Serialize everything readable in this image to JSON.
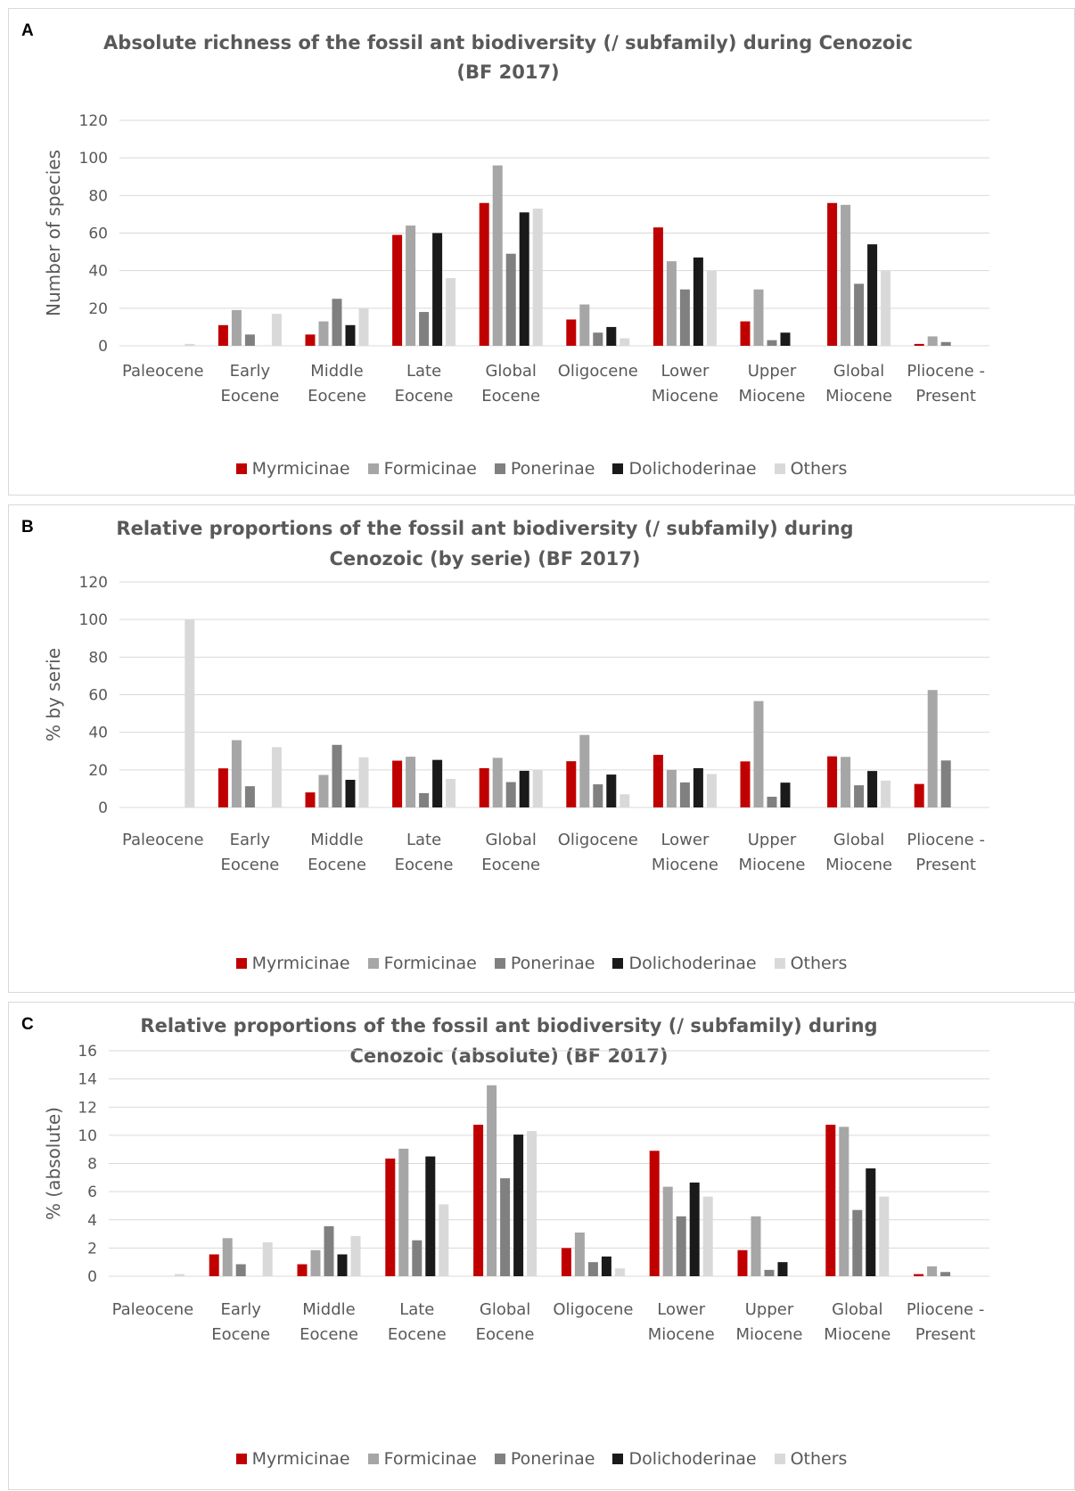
{
  "panels": [
    {
      "letter": "A",
      "chart_data": {
        "type": "bar",
        "title": "Absolute richness of the fossil ant biodiversity (/ subfamily) during Cenozoic (BF 2017)",
        "title_lines": [
          "Absolute richness of the fossil ant biodiversity (/ subfamily) during Cenozoic",
          "(BF 2017)"
        ],
        "ylabel": "Number of species",
        "ylim": [
          0,
          120
        ],
        "yticks": [
          0,
          20,
          40,
          60,
          80,
          100,
          120
        ],
        "grid": true,
        "legend_position": "bottom",
        "categories": [
          [
            "Paleocene"
          ],
          [
            "Early",
            "Eocene"
          ],
          [
            "Middle",
            "Eocene"
          ],
          [
            "Late",
            "Eocene"
          ],
          [
            "Global",
            "Eocene"
          ],
          [
            "Oligocene"
          ],
          [
            "Lower",
            "Miocene"
          ],
          [
            "Upper",
            "Miocene"
          ],
          [
            "Global",
            "Miocene"
          ],
          [
            "Pliocene -",
            "Present"
          ]
        ],
        "series": [
          {
            "name": "Myrmicinae",
            "color": "#c00000",
            "values": [
              0,
              11,
              6,
              59,
              76,
              14,
              63,
              13,
              76,
              1
            ]
          },
          {
            "name": "Formicinae",
            "color": "#a6a6a6",
            "values": [
              0,
              19,
              13,
              64,
              96,
              22,
              45,
              30,
              75,
              5
            ]
          },
          {
            "name": "Ponerinae",
            "color": "#808080",
            "values": [
              0,
              6,
              25,
              18,
              49,
              7,
              30,
              3,
              33,
              2
            ]
          },
          {
            "name": "Dolichoderinae",
            "color": "#1a1a1a",
            "values": [
              0,
              0,
              11,
              60,
              71,
              10,
              47,
              7,
              54,
              0
            ]
          },
          {
            "name": "Others",
            "color": "#d9d9d9",
            "values": [
              1,
              17,
              20,
              36,
              73,
              4,
              40,
              0,
              40,
              0
            ]
          }
        ]
      }
    },
    {
      "letter": "B",
      "chart_data": {
        "type": "bar",
        "title": "Relative proportions of the fossil ant biodiversity (/ subfamily) during Cenozoic (by serie) (BF 2017)",
        "title_lines": [
          "Relative proportions of the fossil ant biodiversity (/ subfamily) during",
          "Cenozoic (by serie) (BF 2017)"
        ],
        "ylabel": "% by serie",
        "ylim": [
          0,
          120
        ],
        "yticks": [
          0,
          20,
          40,
          60,
          80,
          100,
          120
        ],
        "grid": true,
        "legend_position": "bottom",
        "categories": [
          [
            "Paleocene"
          ],
          [
            "Early",
            "Eocene"
          ],
          [
            "Middle",
            "Eocene"
          ],
          [
            "Late",
            "Eocene"
          ],
          [
            "Global",
            "Eocene"
          ],
          [
            "Oligocene"
          ],
          [
            "Lower",
            "Miocene"
          ],
          [
            "Upper",
            "Miocene"
          ],
          [
            "Global",
            "Miocene"
          ],
          [
            "Pliocene -",
            "Present"
          ]
        ],
        "series": [
          {
            "name": "Myrmicinae",
            "color": "#c00000",
            "values": [
              0,
              20.8,
              8.0,
              24.9,
              20.9,
              24.6,
              28.0,
              24.5,
              27.2,
              12.5
            ]
          },
          {
            "name": "Formicinae",
            "color": "#a6a6a6",
            "values": [
              0,
              35.8,
              17.3,
              27.0,
              26.4,
              38.6,
              20.0,
              56.6,
              26.9,
              62.5
            ]
          },
          {
            "name": "Ponerinae",
            "color": "#808080",
            "values": [
              0,
              11.3,
              33.3,
              7.6,
              13.5,
              12.3,
              13.3,
              5.7,
              11.8,
              25.0
            ]
          },
          {
            "name": "Dolichoderinae",
            "color": "#1a1a1a",
            "values": [
              0,
              0,
              14.7,
              25.3,
              19.5,
              17.5,
              20.9,
              13.2,
              19.4,
              0
            ]
          },
          {
            "name": "Others",
            "color": "#d9d9d9",
            "values": [
              100,
              32.1,
              26.7,
              15.2,
              20.1,
              7.0,
              17.8,
              0,
              14.3,
              0
            ]
          }
        ]
      }
    },
    {
      "letter": "C",
      "chart_data": {
        "type": "bar",
        "title": "Relative proportions of the fossil ant biodiversity (/ subfamily) during Cenozoic (absolute) (BF 2017)",
        "title_lines": [
          "Relative proportions of the fossil ant biodiversity (/ subfamily) during",
          "Cenozoic (absolute) (BF 2017)"
        ],
        "ylabel": "% (absolute)",
        "ylim": [
          0,
          16
        ],
        "yticks": [
          0,
          2,
          4,
          6,
          8,
          10,
          12,
          14,
          16
        ],
        "grid": true,
        "legend_position": "bottom",
        "categories": [
          [
            "Paleocene"
          ],
          [
            "Early",
            "Eocene"
          ],
          [
            "Middle",
            "Eocene"
          ],
          [
            "Late",
            "Eocene"
          ],
          [
            "Global",
            "Eocene"
          ],
          [
            "Oligocene"
          ],
          [
            "Lower",
            "Miocene"
          ],
          [
            "Upper",
            "Miocene"
          ],
          [
            "Global",
            "Miocene"
          ],
          [
            "Pliocene -",
            "Present"
          ]
        ],
        "series": [
          {
            "name": "Myrmicinae",
            "color": "#c00000",
            "values": [
              0,
              1.55,
              0.85,
              8.35,
              10.75,
              2.0,
              8.9,
              1.85,
              10.75,
              0.15
            ]
          },
          {
            "name": "Formicinae",
            "color": "#a6a6a6",
            "values": [
              0,
              2.7,
              1.85,
              9.05,
              13.55,
              3.1,
              6.35,
              4.25,
              10.6,
              0.7
            ]
          },
          {
            "name": "Ponerinae",
            "color": "#808080",
            "values": [
              0,
              0.85,
              3.55,
              2.55,
              6.95,
              1.0,
              4.25,
              0.45,
              4.7,
              0.3
            ]
          },
          {
            "name": "Dolichoderinae",
            "color": "#1a1a1a",
            "values": [
              0,
              0,
              1.55,
              8.5,
              10.05,
              1.4,
              6.65,
              1.0,
              7.65,
              0
            ]
          },
          {
            "name": "Others",
            "color": "#d9d9d9",
            "values": [
              0.15,
              2.4,
              2.85,
              5.1,
              10.3,
              0.55,
              5.65,
              0,
              5.65,
              0
            ]
          }
        ]
      }
    }
  ]
}
